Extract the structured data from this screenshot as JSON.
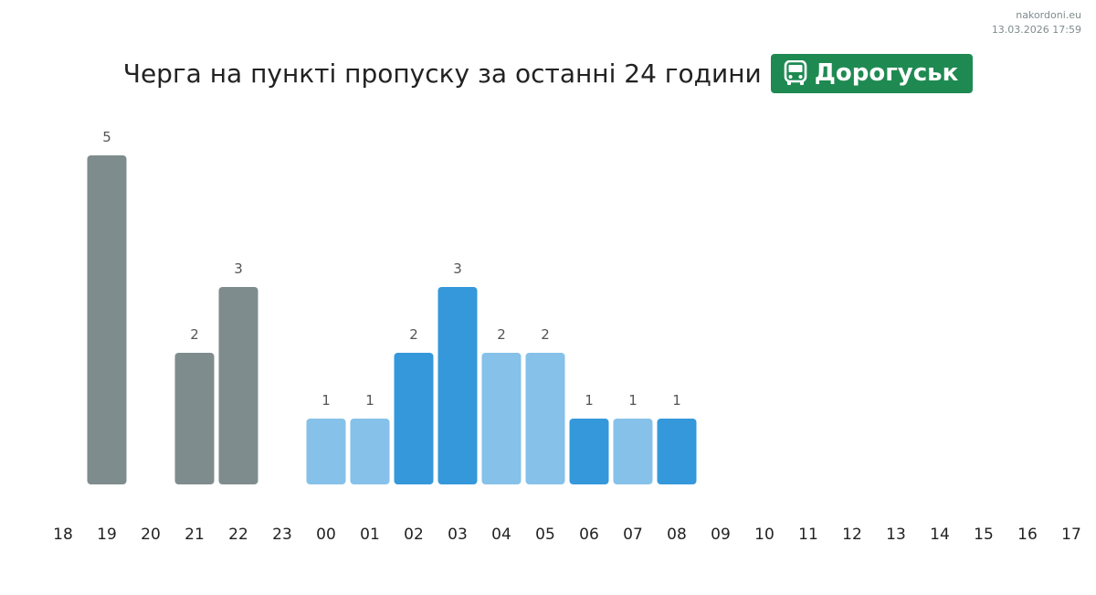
{
  "source": {
    "site": "nakordoni.eu",
    "datetime": "13.03.2026 17:59"
  },
  "header": {
    "title": "Черга на пункті пропуску за останні 24 години",
    "checkpoint": "Дорогуськ",
    "checkpoint_icon": "bus-icon"
  },
  "colors": {
    "past": "#7f8c8d",
    "light": "#85c1e9",
    "dark": "#3498db",
    "badge": "#1e8a52"
  },
  "chart_data": {
    "type": "bar",
    "categories": [
      "18",
      "19",
      "20",
      "21",
      "22",
      "23",
      "00",
      "01",
      "02",
      "03",
      "04",
      "05",
      "06",
      "07",
      "08",
      "09",
      "10",
      "11",
      "12",
      "13",
      "14",
      "15",
      "16",
      "17"
    ],
    "values": [
      null,
      5,
      null,
      2,
      3,
      null,
      1,
      1,
      2,
      3,
      2,
      2,
      1,
      1,
      1,
      null,
      null,
      null,
      null,
      null,
      null,
      null,
      null,
      null
    ],
    "bar_colors": [
      null,
      "#7f8c8d",
      null,
      "#7f8c8d",
      "#7f8c8d",
      null,
      "#85c1e9",
      "#85c1e9",
      "#3498db",
      "#3498db",
      "#85c1e9",
      "#85c1e9",
      "#3498db",
      "#85c1e9",
      "#3498db",
      null,
      null,
      null,
      null,
      null,
      null,
      null,
      null,
      null
    ],
    "ylim": [
      0,
      5
    ],
    "xlabel": "",
    "ylabel": "",
    "grid": false,
    "legend": "none"
  }
}
